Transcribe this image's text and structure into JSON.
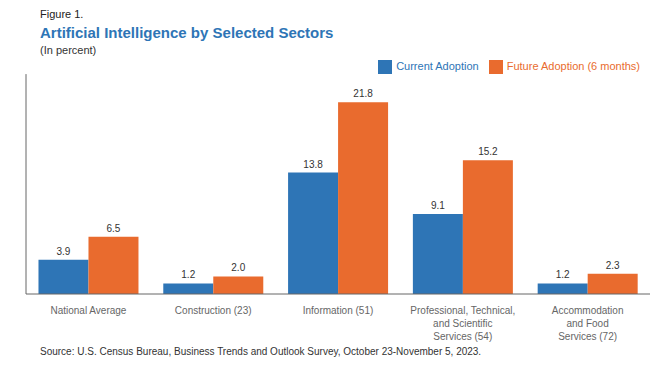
{
  "chart_data": {
    "type": "bar",
    "figure_label": "Figure 1.",
    "title": "Artificial Intelligence by Selected Sectors",
    "subtitle": "(In percent)",
    "source": "Source: U.S. Census Bureau, Business Trends and Outlook Survey, October 23-November 5, 2023.",
    "categories": [
      "National Average",
      "Construction (23)",
      "Information (51)",
      "Professional, Technical,\nand Scientific\nServices (54)",
      "Accommodation\nand Food\nServices (72)"
    ],
    "series": [
      {
        "name": "Current Adoption",
        "color": "#2E75B6",
        "values": [
          3.9,
          1.2,
          13.8,
          9.1,
          1.2
        ]
      },
      {
        "name": "Future Adoption (6 months)",
        "color": "#E96B2E",
        "values": [
          6.5,
          2.0,
          21.8,
          15.2,
          2.3
        ],
        "value_labels": [
          "6.5",
          "2.0",
          "21.8",
          "15.2",
          "2.3"
        ]
      }
    ],
    "ylim": [
      0,
      25
    ],
    "grid": false,
    "legend": "upper right",
    "data_labels": true,
    "tick_labels": "x",
    "title_color": "#2E75B6"
  }
}
